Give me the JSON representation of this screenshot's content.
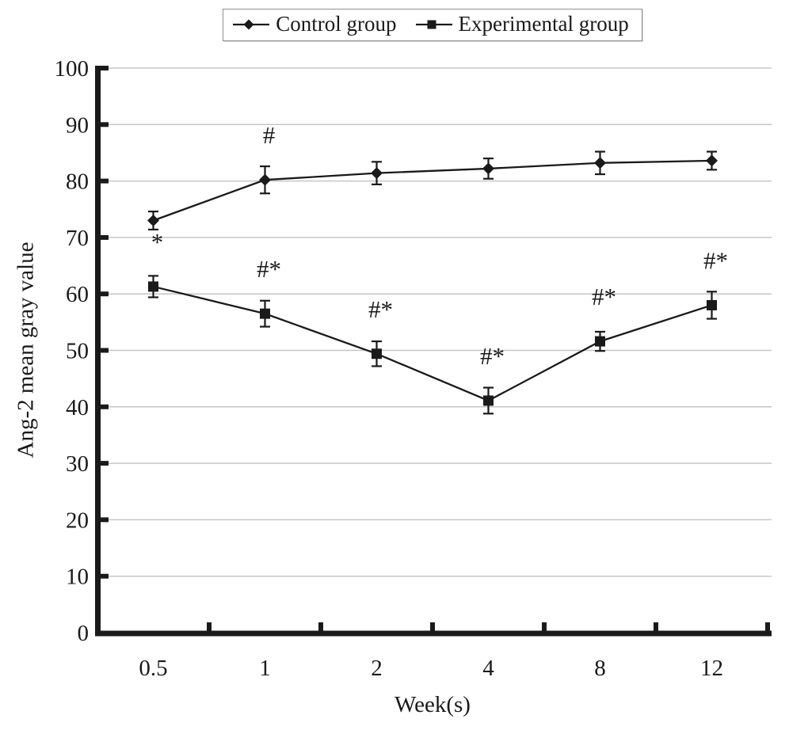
{
  "figure": {
    "background_color": "#ffffff",
    "ink_color": "#1a1a1a",
    "gridline_color": "#c6c6c6",
    "legend_border_color": "#8f8f8f"
  },
  "legend": {
    "items": [
      {
        "label": "Control group",
        "marker": "diamond"
      },
      {
        "label": "Experimental group",
        "marker": "square"
      }
    ]
  },
  "chart_data": {
    "type": "line",
    "title": "",
    "xlabel": "Week(s)",
    "ylabel": "Ang-2 mean gray value",
    "categories": [
      "0.5",
      "1",
      "2",
      "4",
      "8",
      "12"
    ],
    "ylim": [
      0,
      100
    ],
    "ytick_step": 10,
    "grid": "horizontal",
    "legend_position": "top-center",
    "error_bars": true,
    "series": [
      {
        "name": "Control group",
        "marker": "diamond",
        "values": [
          73.0,
          80.2,
          81.4,
          82.2,
          83.2,
          83.6
        ],
        "errors": [
          1.6,
          2.4,
          2.0,
          1.8,
          2.0,
          1.6
        ],
        "annotations": [
          "",
          "#",
          "",
          "",
          "",
          ""
        ]
      },
      {
        "name": "Experimental group",
        "marker": "square",
        "values": [
          61.3,
          56.5,
          49.4,
          41.1,
          51.6,
          58.0
        ],
        "errors": [
          1.9,
          2.3,
          2.2,
          2.3,
          1.7,
          2.4
        ],
        "annotations": [
          "*",
          "#*",
          "#*",
          "#*",
          "#*",
          "#*"
        ]
      }
    ]
  }
}
